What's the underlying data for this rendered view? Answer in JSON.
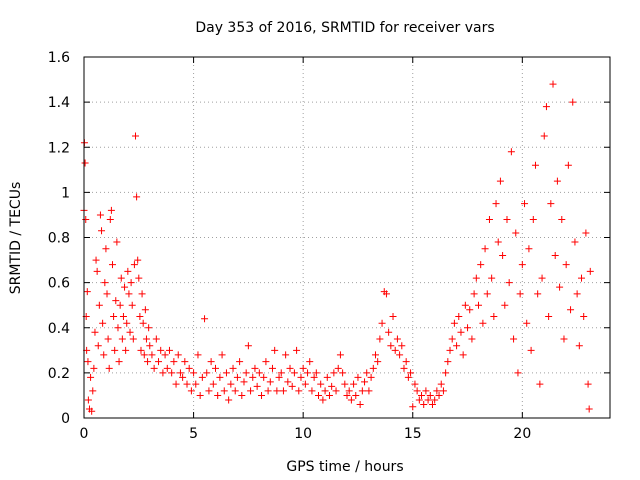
{
  "chart_data": {
    "type": "scatter",
    "title": "Day 353 of 2016, SRMTID for receiver vars",
    "xlabel": "GPS time / hours",
    "ylabel": "SRMTID / TECUs",
    "xlim": [
      0,
      24
    ],
    "ylim": [
      0,
      1.6
    ],
    "xticks": [
      0,
      5,
      10,
      15,
      20
    ],
    "xtick_labels": [
      "0",
      "5",
      "10",
      "15",
      "20"
    ],
    "yticks": [
      0,
      0.2,
      0.4,
      0.6,
      0.8,
      1.0,
      1.2,
      1.4,
      1.6
    ],
    "ytick_labels": [
      "0",
      "0.2",
      "0.4",
      "0.6",
      "0.8",
      "1",
      "1.2",
      "1.4",
      "1.6"
    ],
    "grid": true,
    "marker": "+",
    "marker_color": "#ff0000",
    "series": [
      {
        "name": "SRMTID",
        "points": [
          [
            0.0,
            0.92
          ],
          [
            0.02,
            1.22
          ],
          [
            0.05,
            1.13
          ],
          [
            0.08,
            0.88
          ],
          [
            0.1,
            0.45
          ],
          [
            0.12,
            0.3
          ],
          [
            0.15,
            0.56
          ],
          [
            0.18,
            0.25
          ],
          [
            0.2,
            0.08
          ],
          [
            0.25,
            0.04
          ],
          [
            0.3,
            0.18
          ],
          [
            0.35,
            0.03
          ],
          [
            0.4,
            0.12
          ],
          [
            0.45,
            0.22
          ],
          [
            0.5,
            0.38
          ],
          [
            0.55,
            0.7
          ],
          [
            0.6,
            0.65
          ],
          [
            0.65,
            0.32
          ],
          [
            0.7,
            0.5
          ],
          [
            0.75,
            0.9
          ],
          [
            0.8,
            0.83
          ],
          [
            0.85,
            0.42
          ],
          [
            0.9,
            0.28
          ],
          [
            0.95,
            0.6
          ],
          [
            1.0,
            0.75
          ],
          [
            1.05,
            0.55
          ],
          [
            1.1,
            0.35
          ],
          [
            1.15,
            0.22
          ],
          [
            1.2,
            0.88
          ],
          [
            1.25,
            0.92
          ],
          [
            1.3,
            0.68
          ],
          [
            1.35,
            0.45
          ],
          [
            1.4,
            0.3
          ],
          [
            1.45,
            0.52
          ],
          [
            1.5,
            0.78
          ],
          [
            1.55,
            0.4
          ],
          [
            1.6,
            0.25
          ],
          [
            1.65,
            0.5
          ],
          [
            1.7,
            0.62
          ],
          [
            1.75,
            0.35
          ],
          [
            1.8,
            0.45
          ],
          [
            1.85,
            0.58
          ],
          [
            1.9,
            0.3
          ],
          [
            1.95,
            0.42
          ],
          [
            2.0,
            0.65
          ],
          [
            2.05,
            0.55
          ],
          [
            2.1,
            0.38
          ],
          [
            2.15,
            0.6
          ],
          [
            2.2,
            0.5
          ],
          [
            2.25,
            0.35
          ],
          [
            2.3,
            0.68
          ],
          [
            2.35,
            1.25
          ],
          [
            2.4,
            0.98
          ],
          [
            2.45,
            0.7
          ],
          [
            2.5,
            0.62
          ],
          [
            2.55,
            0.45
          ],
          [
            2.6,
            0.3
          ],
          [
            2.65,
            0.55
          ],
          [
            2.7,
            0.42
          ],
          [
            2.75,
            0.28
          ],
          [
            2.8,
            0.48
          ],
          [
            2.85,
            0.35
          ],
          [
            2.9,
            0.25
          ],
          [
            2.95,
            0.4
          ],
          [
            3.0,
            0.32
          ],
          [
            3.1,
            0.28
          ],
          [
            3.2,
            0.22
          ],
          [
            3.3,
            0.35
          ],
          [
            3.4,
            0.25
          ],
          [
            3.5,
            0.3
          ],
          [
            3.6,
            0.2
          ],
          [
            3.7,
            0.28
          ],
          [
            3.8,
            0.22
          ],
          [
            3.9,
            0.3
          ],
          [
            4.0,
            0.2
          ],
          [
            4.1,
            0.25
          ],
          [
            4.2,
            0.15
          ],
          [
            4.3,
            0.28
          ],
          [
            4.4,
            0.2
          ],
          [
            4.5,
            0.18
          ],
          [
            4.6,
            0.25
          ],
          [
            4.7,
            0.15
          ],
          [
            4.8,
            0.22
          ],
          [
            4.9,
            0.12
          ],
          [
            5.0,
            0.2
          ],
          [
            5.1,
            0.15
          ],
          [
            5.2,
            0.28
          ],
          [
            5.3,
            0.1
          ],
          [
            5.4,
            0.18
          ],
          [
            5.5,
            0.44
          ],
          [
            5.6,
            0.2
          ],
          [
            5.7,
            0.12
          ],
          [
            5.8,
            0.25
          ],
          [
            5.9,
            0.15
          ],
          [
            6.0,
            0.22
          ],
          [
            6.1,
            0.1
          ],
          [
            6.2,
            0.18
          ],
          [
            6.3,
            0.28
          ],
          [
            6.4,
            0.12
          ],
          [
            6.5,
            0.2
          ],
          [
            6.6,
            0.08
          ],
          [
            6.7,
            0.15
          ],
          [
            6.8,
            0.22
          ],
          [
            6.9,
            0.12
          ],
          [
            7.0,
            0.18
          ],
          [
            7.1,
            0.25
          ],
          [
            7.2,
            0.1
          ],
          [
            7.3,
            0.16
          ],
          [
            7.4,
            0.2
          ],
          [
            7.5,
            0.32
          ],
          [
            7.6,
            0.12
          ],
          [
            7.7,
            0.18
          ],
          [
            7.8,
            0.22
          ],
          [
            7.9,
            0.14
          ],
          [
            8.0,
            0.2
          ],
          [
            8.1,
            0.1
          ],
          [
            8.2,
            0.18
          ],
          [
            8.3,
            0.25
          ],
          [
            8.4,
            0.12
          ],
          [
            8.5,
            0.16
          ],
          [
            8.6,
            0.22
          ],
          [
            8.7,
            0.3
          ],
          [
            8.8,
            0.12
          ],
          [
            8.9,
            0.18
          ],
          [
            9.0,
            0.2
          ],
          [
            9.1,
            0.12
          ],
          [
            9.2,
            0.28
          ],
          [
            9.3,
            0.16
          ],
          [
            9.4,
            0.22
          ],
          [
            9.5,
            0.14
          ],
          [
            9.6,
            0.2
          ],
          [
            9.7,
            0.3
          ],
          [
            9.8,
            0.12
          ],
          [
            9.9,
            0.18
          ],
          [
            10.0,
            0.22
          ],
          [
            10.1,
            0.15
          ],
          [
            10.2,
            0.2
          ],
          [
            10.3,
            0.25
          ],
          [
            10.4,
            0.12
          ],
          [
            10.5,
            0.18
          ],
          [
            10.6,
            0.2
          ],
          [
            10.7,
            0.1
          ],
          [
            10.8,
            0.15
          ],
          [
            10.9,
            0.08
          ],
          [
            11.0,
            0.12
          ],
          [
            11.1,
            0.18
          ],
          [
            11.2,
            0.1
          ],
          [
            11.3,
            0.14
          ],
          [
            11.4,
            0.2
          ],
          [
            11.5,
            0.12
          ],
          [
            11.6,
            0.22
          ],
          [
            11.7,
            0.28
          ],
          [
            11.8,
            0.2
          ],
          [
            11.9,
            0.15
          ],
          [
            12.0,
            0.1
          ],
          [
            12.1,
            0.12
          ],
          [
            12.2,
            0.08
          ],
          [
            12.3,
            0.15
          ],
          [
            12.4,
            0.1
          ],
          [
            12.5,
            0.18
          ],
          [
            12.6,
            0.06
          ],
          [
            12.7,
            0.12
          ],
          [
            12.8,
            0.16
          ],
          [
            12.9,
            0.2
          ],
          [
            13.0,
            0.12
          ],
          [
            13.1,
            0.18
          ],
          [
            13.2,
            0.22
          ],
          [
            13.3,
            0.28
          ],
          [
            13.4,
            0.25
          ],
          [
            13.5,
            0.35
          ],
          [
            13.6,
            0.42
          ],
          [
            13.7,
            0.56
          ],
          [
            13.8,
            0.55
          ],
          [
            13.9,
            0.38
          ],
          [
            14.0,
            0.32
          ],
          [
            14.1,
            0.45
          ],
          [
            14.2,
            0.3
          ],
          [
            14.3,
            0.35
          ],
          [
            14.4,
            0.28
          ],
          [
            14.5,
            0.32
          ],
          [
            14.6,
            0.22
          ],
          [
            14.7,
            0.25
          ],
          [
            14.8,
            0.18
          ],
          [
            14.9,
            0.2
          ],
          [
            15.0,
            0.05
          ],
          [
            15.1,
            0.15
          ],
          [
            15.2,
            0.12
          ],
          [
            15.3,
            0.08
          ],
          [
            15.4,
            0.1
          ],
          [
            15.5,
            0.06
          ],
          [
            15.6,
            0.12
          ],
          [
            15.7,
            0.08
          ],
          [
            15.8,
            0.1
          ],
          [
            15.9,
            0.06
          ],
          [
            16.0,
            0.08
          ],
          [
            16.1,
            0.12
          ],
          [
            16.2,
            0.1
          ],
          [
            16.3,
            0.15
          ],
          [
            16.4,
            0.12
          ],
          [
            16.5,
            0.2
          ],
          [
            16.6,
            0.25
          ],
          [
            16.7,
            0.3
          ],
          [
            16.8,
            0.35
          ],
          [
            16.9,
            0.42
          ],
          [
            17.0,
            0.32
          ],
          [
            17.1,
            0.45
          ],
          [
            17.2,
            0.38
          ],
          [
            17.3,
            0.28
          ],
          [
            17.4,
            0.5
          ],
          [
            17.5,
            0.4
          ],
          [
            17.6,
            0.48
          ],
          [
            17.7,
            0.35
          ],
          [
            17.8,
            0.55
          ],
          [
            17.9,
            0.62
          ],
          [
            18.0,
            0.5
          ],
          [
            18.1,
            0.68
          ],
          [
            18.2,
            0.42
          ],
          [
            18.3,
            0.75
          ],
          [
            18.4,
            0.55
          ],
          [
            18.5,
            0.88
          ],
          [
            18.6,
            0.62
          ],
          [
            18.7,
            0.45
          ],
          [
            18.8,
            0.95
          ],
          [
            18.9,
            0.78
          ],
          [
            19.0,
            1.05
          ],
          [
            19.1,
            0.72
          ],
          [
            19.2,
            0.5
          ],
          [
            19.3,
            0.88
          ],
          [
            19.4,
            0.6
          ],
          [
            19.5,
            1.18
          ],
          [
            19.6,
            0.35
          ],
          [
            19.7,
            0.82
          ],
          [
            19.8,
            0.2
          ],
          [
            19.9,
            0.55
          ],
          [
            20.0,
            0.68
          ],
          [
            20.1,
            0.95
          ],
          [
            20.2,
            0.42
          ],
          [
            20.3,
            0.75
          ],
          [
            20.4,
            0.3
          ],
          [
            20.5,
            0.88
          ],
          [
            20.6,
            1.12
          ],
          [
            20.7,
            0.55
          ],
          [
            20.8,
            0.15
          ],
          [
            20.9,
            0.62
          ],
          [
            21.0,
            1.25
          ],
          [
            21.1,
            1.38
          ],
          [
            21.2,
            0.45
          ],
          [
            21.3,
            0.95
          ],
          [
            21.4,
            1.48
          ],
          [
            21.5,
            0.72
          ],
          [
            21.6,
            1.05
          ],
          [
            21.7,
            0.58
          ],
          [
            21.8,
            0.88
          ],
          [
            21.9,
            0.35
          ],
          [
            22.0,
            0.68
          ],
          [
            22.1,
            1.12
          ],
          [
            22.2,
            0.48
          ],
          [
            22.3,
            1.4
          ],
          [
            22.4,
            0.78
          ],
          [
            22.5,
            0.55
          ],
          [
            22.6,
            0.32
          ],
          [
            22.7,
            0.62
          ],
          [
            22.8,
            0.45
          ],
          [
            22.9,
            0.82
          ],
          [
            23.0,
            0.15
          ],
          [
            23.05,
            0.04
          ],
          [
            23.1,
            0.65
          ]
        ]
      }
    ]
  }
}
